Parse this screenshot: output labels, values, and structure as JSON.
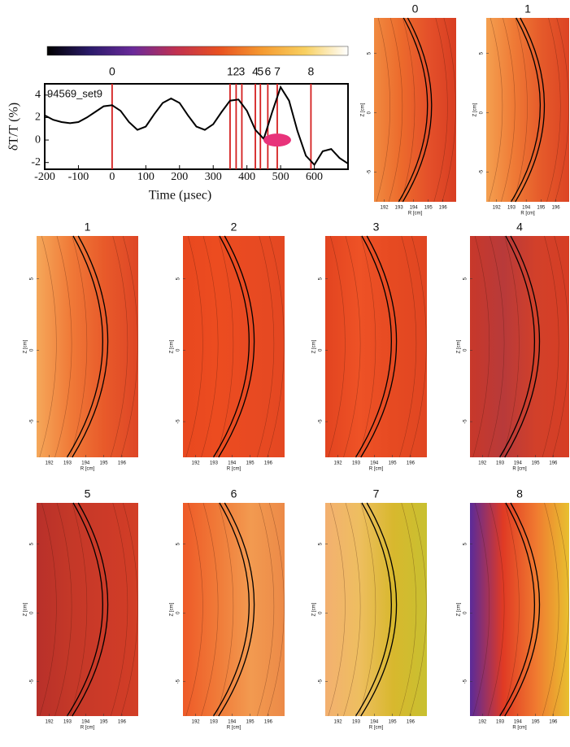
{
  "chart_data": [
    {
      "type": "line",
      "xlabel": "Time (µsec)",
      "ylabel": "δT/T (%)",
      "annotation": "94569_set9",
      "x": [
        -200,
        -175,
        -150,
        -125,
        -100,
        -75,
        -50,
        -25,
        0,
        25,
        50,
        75,
        100,
        125,
        150,
        175,
        200,
        225,
        250,
        275,
        300,
        325,
        350,
        375,
        400,
        425,
        450,
        475,
        500,
        525,
        550,
        575,
        600,
        625,
        650,
        675,
        700
      ],
      "series": [
        {
          "color": "#000000",
          "values": [
            2.2,
            1.8,
            1.6,
            1.5,
            1.6,
            2.0,
            2.5,
            3.0,
            3.1,
            2.6,
            1.6,
            0.9,
            1.2,
            2.3,
            3.3,
            3.7,
            3.3,
            2.2,
            1.2,
            0.9,
            1.4,
            2.5,
            3.5,
            3.6,
            2.6,
            0.9,
            0.1,
            2.5,
            4.7,
            3.5,
            0.8,
            -1.4,
            -2.2,
            -1.0,
            -0.8,
            -1.6,
            -2.1
          ]
        }
      ],
      "markers": {
        "color": "#d42020",
        "x": [
          0,
          350,
          368,
          385,
          425,
          440,
          462,
          490,
          590
        ],
        "labels": [
          "0",
          "1",
          "2",
          "3",
          "4",
          "5",
          "6",
          "7",
          "8"
        ]
      },
      "xlim": [
        -200,
        700
      ],
      "xticks": [
        -200,
        -100,
        0,
        100,
        200,
        300,
        400,
        500,
        600
      ],
      "ylim": [
        -2.6,
        5
      ],
      "yticks": [
        -2,
        0,
        2,
        4
      ],
      "colorbar": [
        "#000000",
        "#2a1a6a",
        "#6a2a9a",
        "#c03050",
        "#e85020",
        "#f59a30",
        "#f8d060",
        "#ffffff"
      ]
    },
    {
      "type": "contour",
      "title": "0",
      "xlabel": "R [cm]",
      "ylabel": "Z [cm]",
      "xlim": [
        191.3,
        196.9
      ],
      "ylim": [
        -7.5,
        8
      ],
      "xticks": [
        192,
        193,
        194,
        195,
        196
      ],
      "yticks": [
        5,
        0,
        -5
      ],
      "colors": [
        "#f08a40",
        "#ec6a2c",
        "#e4502a",
        "#d83e22"
      ]
    },
    {
      "type": "contour",
      "title": "1",
      "xlabel": "R [cm]",
      "ylabel": "Z [cm]",
      "xlim": [
        191.3,
        196.9
      ],
      "ylim": [
        -7.5,
        8
      ],
      "xticks": [
        192,
        193,
        194,
        195,
        196
      ],
      "yticks": [
        5,
        0,
        -5
      ],
      "colors": [
        "#f4a050",
        "#ef7a36",
        "#e55a2a",
        "#dc4424"
      ]
    },
    {
      "type": "contour",
      "title": "1",
      "xlabel": "R [cm]",
      "ylabel": "Z [cm]",
      "xlim": [
        191.3,
        196.9
      ],
      "ylim": [
        -7.5,
        8
      ],
      "xticks": [
        192,
        193,
        194,
        195,
        196
      ],
      "yticks": [
        5,
        0,
        -5
      ],
      "colors": [
        "#f5a85a",
        "#f07a38",
        "#e85a2a",
        "#de4626"
      ]
    },
    {
      "type": "contour",
      "title": "2",
      "xlabel": "R [cm]",
      "ylabel": "Z [cm]",
      "xlim": [
        191.3,
        196.9
      ],
      "ylim": [
        -7.5,
        8
      ],
      "xticks": [
        192,
        193,
        194,
        195,
        196
      ],
      "yticks": [
        5,
        0,
        -5
      ],
      "colors": [
        "#e8481f",
        "#ec4c20",
        "#e84a22",
        "#e44822"
      ]
    },
    {
      "type": "contour",
      "title": "3",
      "xlabel": "R [cm]",
      "ylabel": "Z [cm]",
      "xlim": [
        191.3,
        196.9
      ],
      "ylim": [
        -7.5,
        8
      ],
      "xticks": [
        192,
        193,
        194,
        195,
        196
      ],
      "yticks": [
        5,
        0,
        -5
      ],
      "colors": [
        "#e24420",
        "#ee5226",
        "#e64a22",
        "#e04622"
      ]
    },
    {
      "type": "contour",
      "title": "4",
      "xlabel": "R [cm]",
      "ylabel": "Z [cm]",
      "xlim": [
        191.3,
        196.9
      ],
      "ylim": [
        -7.5,
        8
      ],
      "xticks": [
        192,
        193,
        194,
        195,
        196
      ],
      "yticks": [
        5,
        0,
        -5
      ],
      "colors": [
        "#c8382a",
        "#b83a3a",
        "#d2402a",
        "#d63e24"
      ]
    },
    {
      "type": "contour",
      "title": "5",
      "xlabel": "R [cm]",
      "ylabel": "Z [cm]",
      "xlim": [
        191.3,
        196.9
      ],
      "ylim": [
        -7.5,
        8
      ],
      "xticks": [
        192,
        193,
        194,
        195,
        196
      ],
      "yticks": [
        5,
        0,
        -5
      ],
      "colors": [
        "#b8302a",
        "#c43828",
        "#cc3a28",
        "#d23e26"
      ]
    },
    {
      "type": "contour",
      "title": "6",
      "xlabel": "R [cm]",
      "ylabel": "Z [cm]",
      "xlim": [
        191.3,
        196.9
      ],
      "ylim": [
        -7.5,
        8
      ],
      "xticks": [
        192,
        193,
        194,
        195,
        196
      ],
      "yticks": [
        5,
        0,
        -5
      ],
      "colors": [
        "#ee5a28",
        "#f07a38",
        "#f29a50",
        "#ec8a48"
      ]
    },
    {
      "type": "contour",
      "title": "7",
      "xlabel": "R [cm]",
      "ylabel": "Z [cm]",
      "xlim": [
        191.3,
        196.9
      ],
      "ylim": [
        -7.5,
        8
      ],
      "xticks": [
        192,
        193,
        194,
        195,
        196
      ],
      "yticks": [
        5,
        0,
        -5
      ],
      "colors": [
        "#f3b070",
        "#eebe60",
        "#d8b82e",
        "#c8c030"
      ]
    },
    {
      "type": "contour",
      "title": "8",
      "xlabel": "R [cm]",
      "ylabel": "Z [cm]",
      "xlim": [
        191.3,
        196.9
      ],
      "ylim": [
        -7.5,
        8
      ],
      "xticks": [
        192,
        193,
        194,
        195,
        196
      ],
      "yticks": [
        5,
        0,
        -5
      ],
      "colors": [
        "#5a2a9a",
        "#e03a24",
        "#f07a30",
        "#e8c030"
      ]
    }
  ]
}
